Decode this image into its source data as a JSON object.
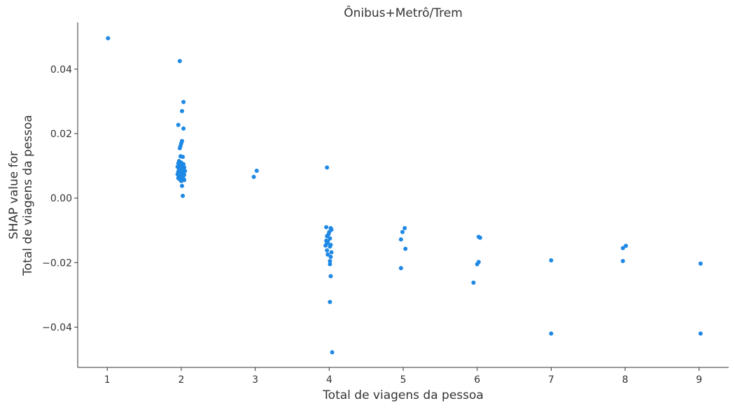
{
  "chart_data": {
    "type": "scatter",
    "title": "Ônibus+Metrô/Trem",
    "xlabel": "Total de viagens da pessoa",
    "ylabel": [
      "SHAP value for",
      "Total de viagens da pessoa"
    ],
    "xlim": [
      0.6,
      9.4
    ],
    "ylim": [
      -0.0525,
      0.0545
    ],
    "xticks": [
      1,
      2,
      3,
      4,
      5,
      6,
      7,
      8,
      9
    ],
    "xtick_labels": [
      "1",
      "2",
      "3",
      "4",
      "5",
      "6",
      "7",
      "8",
      "9"
    ],
    "yticks": [
      0.04,
      0.02,
      0.0,
      -0.02,
      -0.04
    ],
    "ytick_labels": [
      "0.04",
      "0.02",
      "0.00",
      "−0.02",
      "−0.04"
    ],
    "grid": false,
    "color": "#1e88e5",
    "points": [
      [
        1.01,
        0.0496
      ],
      [
        1.98,
        0.0425
      ],
      [
        2.03,
        0.0298
      ],
      [
        2.01,
        0.027
      ],
      [
        1.96,
        0.0227
      ],
      [
        2.03,
        0.0216
      ],
      [
        2.01,
        0.0177
      ],
      [
        2.0,
        0.017
      ],
      [
        1.99,
        0.0162
      ],
      [
        1.98,
        0.0155
      ],
      [
        1.99,
        0.013
      ],
      [
        2.02,
        0.0128
      ],
      [
        1.97,
        0.0115
      ],
      [
        2.0,
        0.011
      ],
      [
        1.96,
        0.0108
      ],
      [
        2.03,
        0.0105
      ],
      [
        1.98,
        0.0102
      ],
      [
        2.01,
        0.0099
      ],
      [
        1.95,
        0.0097
      ],
      [
        2.04,
        0.0095
      ],
      [
        1.99,
        0.0093
      ],
      [
        2.02,
        0.009
      ],
      [
        1.97,
        0.0088
      ],
      [
        2.0,
        0.0086
      ],
      [
        2.05,
        0.0084
      ],
      [
        1.96,
        0.0082
      ],
      [
        2.03,
        0.008
      ],
      [
        1.98,
        0.0078
      ],
      [
        2.01,
        0.0076
      ],
      [
        1.95,
        0.0074
      ],
      [
        2.04,
        0.0072
      ],
      [
        1.99,
        0.007
      ],
      [
        2.02,
        0.0068
      ],
      [
        1.97,
        0.0066
      ],
      [
        2.0,
        0.0064
      ],
      [
        1.96,
        0.0062
      ],
      [
        2.03,
        0.006
      ],
      [
        1.98,
        0.0058
      ],
      [
        2.04,
        0.0056
      ],
      [
        2.0,
        0.0053
      ],
      [
        2.01,
        0.0038
      ],
      [
        2.02,
        0.0007
      ],
      [
        3.02,
        0.0085
      ],
      [
        2.98,
        0.0066
      ],
      [
        3.97,
        0.0095
      ],
      [
        3.96,
        -0.009
      ],
      [
        4.02,
        -0.0093
      ],
      [
        4.03,
        -0.0098
      ],
      [
        4.0,
        -0.0105
      ],
      [
        3.99,
        -0.0112
      ],
      [
        3.97,
        -0.0118
      ],
      [
        4.01,
        -0.0125
      ],
      [
        3.96,
        -0.0132
      ],
      [
        3.98,
        -0.0135
      ],
      [
        3.97,
        -0.014
      ],
      [
        4.02,
        -0.0145
      ],
      [
        3.95,
        -0.0147
      ],
      [
        4.01,
        -0.015
      ],
      [
        3.97,
        -0.0162
      ],
      [
        4.03,
        -0.0168
      ],
      [
        3.98,
        -0.0175
      ],
      [
        4.02,
        -0.0182
      ],
      [
        4.01,
        -0.0195
      ],
      [
        4.01,
        -0.0205
      ],
      [
        4.02,
        -0.0242
      ],
      [
        4.01,
        -0.0322
      ],
      [
        4.04,
        -0.0478
      ],
      [
        5.02,
        -0.0093
      ],
      [
        4.99,
        -0.0105
      ],
      [
        4.97,
        -0.0128
      ],
      [
        5.03,
        -0.0157
      ],
      [
        4.97,
        -0.0217
      ],
      [
        6.02,
        -0.012
      ],
      [
        6.04,
        -0.0123
      ],
      [
        6.02,
        -0.0198
      ],
      [
        6.0,
        -0.0205
      ],
      [
        5.95,
        -0.0262
      ],
      [
        7.0,
        -0.0193
      ],
      [
        7.0,
        -0.042
      ],
      [
        8.01,
        -0.0148
      ],
      [
        7.97,
        -0.0155
      ],
      [
        7.97,
        -0.0195
      ],
      [
        9.02,
        -0.0203
      ],
      [
        9.02,
        -0.042
      ]
    ]
  }
}
